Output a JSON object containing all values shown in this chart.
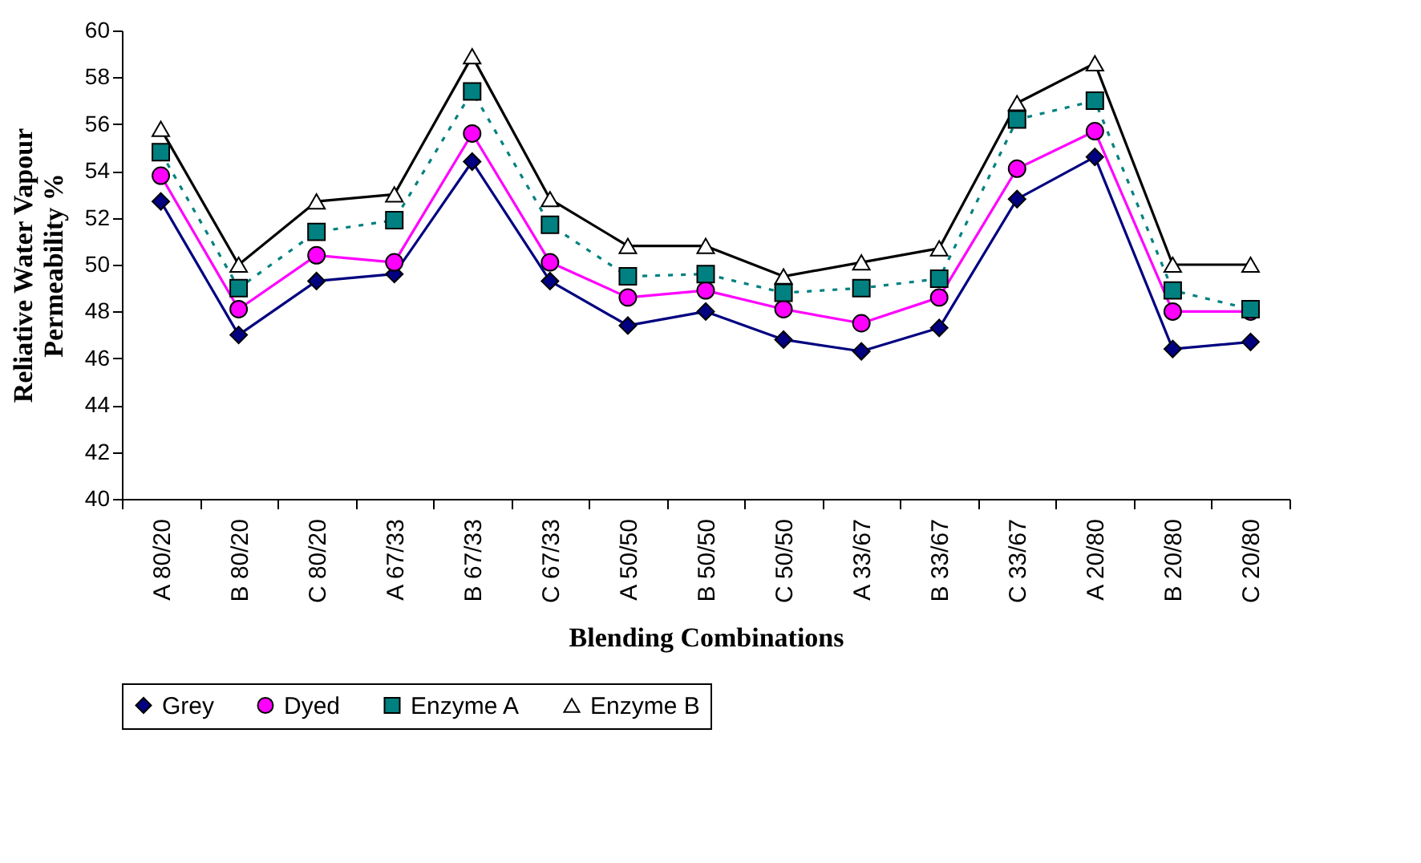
{
  "chart_data": {
    "type": "line",
    "xlabel": "Blending Combinations",
    "ylabel": "Reliative Water Vapour Permeability %",
    "categories": [
      "A 80/20",
      "B 80/20",
      "C 80/20",
      "A 67/33",
      "B 67/33",
      "C 67/33",
      "A 50/50",
      "B 50/50",
      "C 50/50",
      "A 33/67",
      "B 33/67",
      "C 33/67",
      "A 20/80",
      "B 20/80",
      "C 20/80"
    ],
    "ylim": [
      40,
      60
    ],
    "yticks": [
      40,
      42,
      44,
      46,
      48,
      50,
      52,
      54,
      56,
      58,
      60
    ],
    "grid": false,
    "legend": "bottom",
    "series": [
      {
        "name": "Grey",
        "color": "#000080",
        "marker": "diamond",
        "line_style": "solid",
        "values": [
          52.7,
          47.0,
          49.3,
          49.6,
          54.4,
          49.3,
          47.4,
          48.0,
          46.8,
          46.3,
          47.3,
          52.8,
          54.6,
          46.4,
          46.7
        ]
      },
      {
        "name": "Dyed",
        "color": "#ff00ff",
        "marker": "circle",
        "line_style": "solid",
        "values": [
          53.8,
          48.1,
          50.4,
          50.1,
          55.6,
          50.1,
          48.6,
          48.9,
          48.1,
          47.5,
          48.6,
          54.1,
          55.7,
          48.0,
          48.0
        ]
      },
      {
        "name": "Enzyme A",
        "color": "#008080",
        "marker": "square",
        "line_style": "dotted",
        "values": [
          54.8,
          49.0,
          51.4,
          51.9,
          57.4,
          51.7,
          49.5,
          49.6,
          48.8,
          49.0,
          49.4,
          56.2,
          57.0,
          48.9,
          48.1
        ]
      },
      {
        "name": "Enzyme B",
        "color": "#000000",
        "marker": "triangle",
        "line_style": "solid",
        "values": [
          55.8,
          50.0,
          52.7,
          53.0,
          58.9,
          52.8,
          50.8,
          50.8,
          49.5,
          50.1,
          50.7,
          56.9,
          58.6,
          50.0,
          50.0
        ]
      }
    ]
  }
}
